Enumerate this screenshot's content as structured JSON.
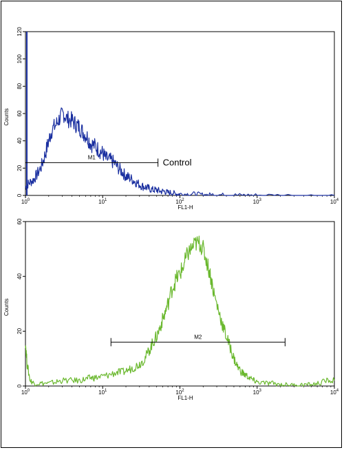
{
  "chart_data": [
    {
      "type": "line",
      "xlabel": "FL1-H",
      "ylabel": "Counts",
      "x_scale": "log",
      "xlim": [
        1,
        10000
      ],
      "ylim": [
        0,
        120
      ],
      "x_ticks": [
        {
          "value": 1,
          "base": "10",
          "exp": "0"
        },
        {
          "value": 10,
          "base": "10",
          "exp": "1"
        },
        {
          "value": 100,
          "base": "10",
          "exp": "2"
        },
        {
          "value": 1000,
          "base": "10",
          "exp": "3"
        },
        {
          "value": 10000,
          "base": "10",
          "exp": "4"
        }
      ],
      "y_ticks": [
        0,
        20,
        40,
        60,
        80,
        100,
        120
      ],
      "color": "#1a2fa0",
      "series": [
        {
          "x": [
            1,
            1.1,
            1.25,
            1.4,
            1.6,
            1.8,
            2,
            2.2,
            2.5,
            2.8,
            3.1,
            3.5,
            4,
            4.5,
            5,
            5.6,
            6.3,
            7,
            8,
            9,
            10,
            11,
            12.5,
            14,
            16,
            18,
            20,
            22,
            25,
            28,
            32,
            36,
            40,
            45,
            50,
            56,
            63,
            70,
            80,
            90,
            100,
            125,
            160,
            200,
            250,
            300,
            400,
            500,
            700,
            1000,
            2000,
            5000,
            10000
          ],
          "y": [
            6,
            9,
            11,
            15,
            21,
            30,
            40,
            48,
            52,
            57,
            60,
            56,
            55,
            52,
            50,
            46,
            43,
            38,
            36,
            33,
            31,
            27,
            26,
            24,
            20,
            17,
            14,
            13,
            11,
            9,
            7,
            6,
            5,
            4,
            4,
            3,
            3,
            2,
            2,
            1,
            1,
            1,
            1,
            0.5,
            0.5,
            0.5,
            0.3,
            0.3,
            0.2,
            0.2,
            0.1,
            0,
            0
          ]
        }
      ],
      "spike": {
        "x": 1,
        "y": 120
      },
      "gates": [
        {
          "label": "M1",
          "x_start": 1,
          "x_end": 52,
          "y": 24
        }
      ],
      "annotation": {
        "text": "Control",
        "x": 60,
        "y": 24
      }
    },
    {
      "type": "line",
      "xlabel": "FL1-H",
      "ylabel": "Counts",
      "x_scale": "log",
      "xlim": [
        1,
        10000
      ],
      "ylim": [
        0,
        60
      ],
      "x_ticks": [
        {
          "value": 1,
          "base": "10",
          "exp": "0"
        },
        {
          "value": 10,
          "base": "10",
          "exp": "1"
        },
        {
          "value": 100,
          "base": "10",
          "exp": "2"
        },
        {
          "value": 1000,
          "base": "10",
          "exp": "3"
        },
        {
          "value": 10000,
          "base": "10",
          "exp": "4"
        }
      ],
      "y_ticks": [
        0,
        20,
        40,
        60
      ],
      "color": "#6ab82e",
      "series": [
        {
          "x": [
            1,
            1.05,
            1.15,
            1.3,
            1.6,
            2,
            2.5,
            3,
            4,
            5,
            6,
            7,
            8,
            10,
            12,
            15,
            18,
            22,
            26,
            30,
            35,
            40,
            45,
            50,
            56,
            63,
            70,
            80,
            90,
            100,
            112,
            125,
            140,
            160,
            180,
            200,
            225,
            250,
            280,
            320,
            360,
            400,
            450,
            500,
            560,
            630,
            700,
            800,
            900,
            1000,
            1300,
            1600,
            2000,
            2500,
            3200,
            4000,
            5000,
            6300,
            8000,
            10000
          ],
          "y": [
            16,
            8,
            2,
            1,
            1,
            1,
            1.5,
            2,
            2,
            2,
            2.5,
            3,
            3,
            3.5,
            4,
            5,
            5,
            6,
            7,
            8,
            10,
            13,
            16,
            18,
            22,
            26,
            30,
            36,
            39,
            41,
            44,
            48,
            50,
            52,
            52,
            50,
            45,
            40,
            33,
            27,
            22,
            18,
            14,
            10,
            7,
            5,
            4,
            3,
            2,
            1.5,
            1,
            1,
            0.5,
            0.5,
            0.3,
            0.5,
            0.5,
            1,
            2,
            2
          ]
        }
      ],
      "gates": [
        {
          "label": "M2",
          "x_start": 12.8,
          "x_end": 2300,
          "y": 16
        }
      ]
    }
  ]
}
